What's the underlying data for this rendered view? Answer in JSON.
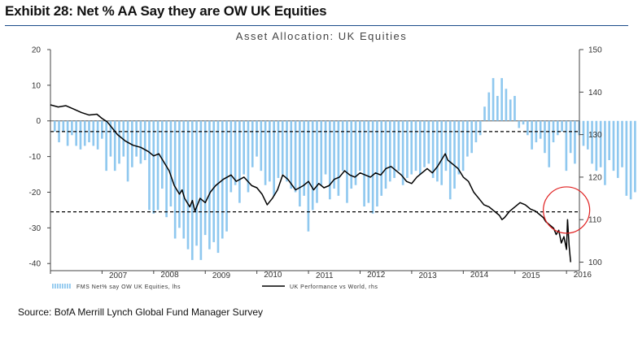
{
  "exhibit": {
    "title": "Exhibit 28: Net % AA Say they are OW UK Equities",
    "source": "Source: BofA Merrill Lynch Global Fund Manager Survey"
  },
  "colors": {
    "bar": "#8fc8ef",
    "line": "#000000",
    "circle": "#e02020",
    "rule": "#1b4b8a"
  },
  "chart_data": {
    "type": "bar+line",
    "title": "Asset Allocation: UK Equities",
    "x_range": [
      2006.0,
      2016.25
    ],
    "x_tick_labels": [
      "2007",
      "2008",
      "2009",
      "2010",
      "2011",
      "2012",
      "2013",
      "2014",
      "2015",
      "2016"
    ],
    "left_axis": {
      "range": [
        -42,
        20
      ],
      "ticks": [
        20,
        10,
        0,
        -10,
        -20,
        -30,
        -40
      ]
    },
    "right_axis": {
      "range": [
        98,
        150
      ],
      "ticks": [
        150,
        140,
        130,
        120,
        110,
        100
      ]
    },
    "reference_lines": [
      {
        "axis": "left",
        "value": -3,
        "style": "dashed"
      },
      {
        "axis": "left",
        "value": -25.5,
        "style": "dashed"
      }
    ],
    "annotation": {
      "type": "circle",
      "center": [
        2016.0,
        -25
      ],
      "radius_years": 0.45
    },
    "series": [
      {
        "name": "FMS Net% say OW UK Equities, lhs",
        "type": "bar",
        "axis": "left",
        "start": 2006.083,
        "step": 0.0833,
        "values": [
          -3,
          -6,
          -3,
          -7,
          -4,
          -7,
          -8,
          -7,
          -6,
          -7,
          -8,
          -5,
          -14,
          -10,
          -14,
          -12,
          -10,
          -17,
          -13,
          -10,
          -12,
          -11,
          -25,
          -26,
          -25,
          -19,
          -27,
          -24,
          -33,
          -30,
          -33,
          -36,
          -39,
          -35,
          -39,
          -32,
          -36,
          -34,
          -37,
          -33,
          -31,
          -20,
          -18,
          -23,
          -15,
          -20,
          -13,
          -10,
          -14,
          -18,
          -17,
          -21,
          -16,
          -15,
          -17,
          -19,
          -20,
          -24,
          -21,
          -31,
          -25,
          -23,
          -18,
          -15,
          -22,
          -19,
          -21,
          -14,
          -23,
          -19,
          -18,
          -14,
          -24,
          -23,
          -26,
          -24,
          -21,
          -19,
          -17,
          -16,
          -14,
          -18,
          -16,
          -15,
          -14,
          -15,
          -13,
          -12,
          -16,
          -17,
          -18,
          -14,
          -22,
          -19,
          -15,
          -14,
          -10,
          -9,
          -6,
          -4,
          4,
          8,
          12,
          7,
          12,
          9,
          6,
          7,
          -2,
          -1,
          -4,
          -8,
          -6,
          -5,
          -9,
          -13,
          -6,
          -4,
          -3,
          -14,
          -9,
          -12,
          -4,
          -7,
          -8,
          -12,
          -14,
          -13,
          -18,
          -11,
          -14,
          -16,
          -13,
          -21,
          -22,
          -20,
          -21,
          -14,
          -19,
          -17,
          -18,
          -22,
          -16,
          -17,
          -20,
          -21,
          -22,
          -16,
          -24,
          -19,
          -22,
          -23,
          -25,
          -29,
          -19,
          -17,
          -23,
          -34,
          -36,
          -26,
          -37
        ]
      },
      {
        "name": "UK Performance vs World, rhs",
        "type": "line",
        "axis": "right",
        "points": [
          [
            2006.0,
            137
          ],
          [
            2006.15,
            136.5
          ],
          [
            2006.3,
            136.8
          ],
          [
            2006.45,
            136
          ],
          [
            2006.6,
            135.2
          ],
          [
            2006.75,
            134.6
          ],
          [
            2006.9,
            134.8
          ],
          [
            2007.0,
            133.8
          ],
          [
            2007.1,
            133
          ],
          [
            2007.2,
            131.5
          ],
          [
            2007.3,
            130
          ],
          [
            2007.45,
            128.5
          ],
          [
            2007.6,
            127.5
          ],
          [
            2007.75,
            127
          ],
          [
            2007.9,
            126
          ],
          [
            2008.0,
            125
          ],
          [
            2008.1,
            125.5
          ],
          [
            2008.2,
            123.5
          ],
          [
            2008.3,
            121.5
          ],
          [
            2008.4,
            118
          ],
          [
            2008.5,
            116
          ],
          [
            2008.55,
            117
          ],
          [
            2008.6,
            115
          ],
          [
            2008.7,
            113
          ],
          [
            2008.75,
            114.5
          ],
          [
            2008.8,
            112
          ],
          [
            2008.9,
            115
          ],
          [
            2009.0,
            114
          ],
          [
            2009.1,
            116.5
          ],
          [
            2009.2,
            118
          ],
          [
            2009.35,
            119.5
          ],
          [
            2009.5,
            120.5
          ],
          [
            2009.6,
            119
          ],
          [
            2009.75,
            120
          ],
          [
            2009.9,
            118
          ],
          [
            2010.0,
            117.5
          ],
          [
            2010.1,
            116
          ],
          [
            2010.2,
            113.5
          ],
          [
            2010.3,
            115
          ],
          [
            2010.4,
            117
          ],
          [
            2010.5,
            120.5
          ],
          [
            2010.6,
            119.5
          ],
          [
            2010.75,
            117
          ],
          [
            2010.9,
            118
          ],
          [
            2011.0,
            119
          ],
          [
            2011.1,
            117
          ],
          [
            2011.2,
            118.5
          ],
          [
            2011.3,
            117.5
          ],
          [
            2011.4,
            118
          ],
          [
            2011.5,
            119.5
          ],
          [
            2011.6,
            120
          ],
          [
            2011.7,
            121.5
          ],
          [
            2011.8,
            120.5
          ],
          [
            2011.9,
            120
          ],
          [
            2012.0,
            121
          ],
          [
            2012.1,
            120.5
          ],
          [
            2012.2,
            120
          ],
          [
            2012.3,
            121
          ],
          [
            2012.4,
            120.5
          ],
          [
            2012.5,
            122
          ],
          [
            2012.6,
            122.5
          ],
          [
            2012.7,
            121.5
          ],
          [
            2012.8,
            120.5
          ],
          [
            2012.9,
            119
          ],
          [
            2013.0,
            118.5
          ],
          [
            2013.1,
            120
          ],
          [
            2013.2,
            121
          ],
          [
            2013.3,
            122
          ],
          [
            2013.4,
            121
          ],
          [
            2013.5,
            122.5
          ],
          [
            2013.6,
            124.5
          ],
          [
            2013.65,
            125.5
          ],
          [
            2013.7,
            124
          ],
          [
            2013.8,
            123
          ],
          [
            2013.9,
            122
          ],
          [
            2014.0,
            120
          ],
          [
            2014.1,
            119
          ],
          [
            2014.2,
            116.5
          ],
          [
            2014.3,
            115
          ],
          [
            2014.4,
            113.5
          ],
          [
            2014.5,
            113
          ],
          [
            2014.6,
            112
          ],
          [
            2014.7,
            111
          ],
          [
            2014.75,
            110
          ],
          [
            2014.8,
            110.5
          ],
          [
            2014.9,
            112
          ],
          [
            2015.0,
            113
          ],
          [
            2015.1,
            114
          ],
          [
            2015.2,
            113.5
          ],
          [
            2015.3,
            112.5
          ],
          [
            2015.4,
            112
          ],
          [
            2015.5,
            111
          ],
          [
            2015.55,
            110.5
          ],
          [
            2015.6,
            109.5
          ],
          [
            2015.7,
            108.5
          ],
          [
            2015.75,
            108
          ],
          [
            2015.8,
            106.5
          ],
          [
            2015.85,
            107.5
          ],
          [
            2015.9,
            104.5
          ],
          [
            2015.95,
            106
          ],
          [
            2016.0,
            103
          ],
          [
            2016.02,
            110
          ],
          [
            2016.05,
            104
          ],
          [
            2016.08,
            100
          ]
        ]
      }
    ]
  }
}
